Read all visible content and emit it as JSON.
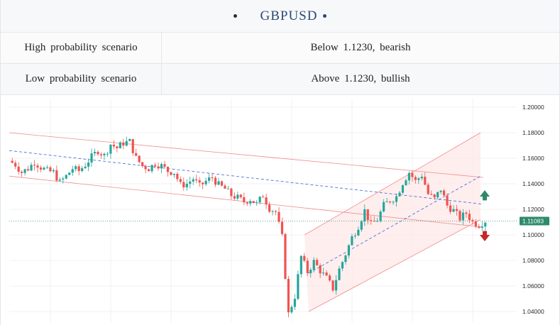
{
  "header": {
    "title": "GBPUSD"
  },
  "scenarios": [
    {
      "label": "High probability scenario",
      "value": "Below 1.1230, bearish"
    },
    {
      "label": "Low probability scenario",
      "value": "Above 1.1230, bullish"
    }
  ],
  "chart_data": {
    "type": "candlestick",
    "symbol": "GBPUSD",
    "ylim": [
      1.035,
      1.205
    ],
    "y_ticks": [
      "1.20000",
      "1.18000",
      "1.16000",
      "1.14000",
      "1.12000",
      "1.10000",
      "1.08000",
      "1.06000",
      "1.04000"
    ],
    "last_price_label": "1.11083",
    "last_price": 1.11083,
    "colors": {
      "up": "#26a69a",
      "down": "#ef5350",
      "channel": "#f28b8b",
      "midline": "#3a63d6",
      "channel_fill": "#fde8e8",
      "arrow_up": "#2e8b6a",
      "arrow_down": "#c62828"
    },
    "close_path": [
      1.158,
      1.155,
      1.149,
      1.152,
      1.157,
      1.153,
      1.15,
      1.149,
      1.141,
      1.146,
      1.152,
      1.15,
      1.155,
      1.161,
      1.166,
      1.162,
      1.171,
      1.168,
      1.172,
      1.173,
      1.16,
      1.154,
      1.152,
      1.156,
      1.154,
      1.15,
      1.149,
      1.139,
      1.14,
      1.144,
      1.138,
      1.142,
      1.145,
      1.139,
      1.136,
      1.131,
      1.129,
      1.126,
      1.128,
      1.124,
      1.131,
      1.121,
      1.118,
      1.098,
      1.038,
      1.052,
      1.083,
      1.071,
      1.079,
      1.072,
      1.066,
      1.058,
      1.073,
      1.085,
      1.098,
      1.107,
      1.119,
      1.108,
      1.112,
      1.123,
      1.127,
      1.13,
      1.141,
      1.149,
      1.142,
      1.147,
      1.132,
      1.128,
      1.136,
      1.123,
      1.119,
      1.113,
      1.117,
      1.11,
      1.108,
      1.111
    ],
    "scenario_arrows": [
      "up",
      "down"
    ]
  }
}
